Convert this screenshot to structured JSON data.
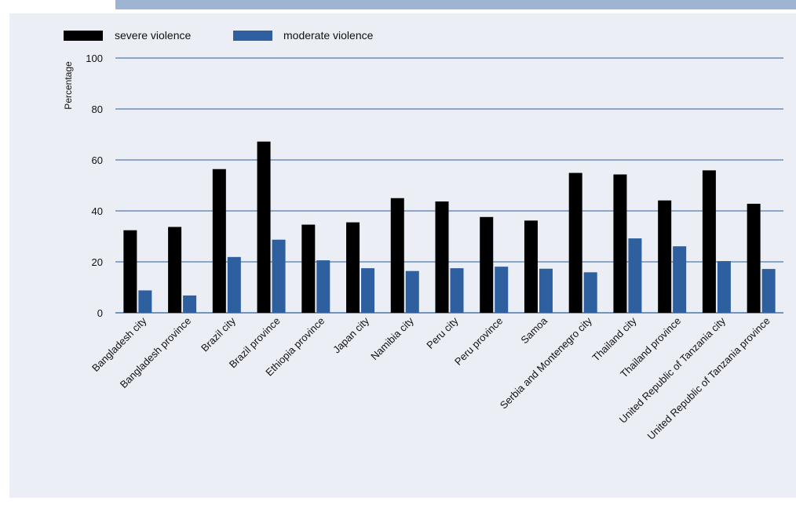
{
  "chart_data": {
    "type": "bar",
    "title": "",
    "xlabel": "",
    "ylabel": "Percentage",
    "ylim": [
      0,
      100
    ],
    "yticks": [
      0,
      20,
      40,
      60,
      80,
      100
    ],
    "grid": true,
    "legend_position": "top-left",
    "categories": [
      "Bangladesh city",
      "Bangladesh province",
      "Brazil city",
      "Brazil province",
      "Ethiopia province",
      "Japan city",
      "Namibia city",
      "Peru city",
      "Peru province",
      "Samoa",
      "Serbia and Montenegro city",
      "Thailand city",
      "Thailand province",
      "United Republic of Tanzania city",
      "United Republic of Tanzania province"
    ],
    "series": [
      {
        "name": "severe violence",
        "color": "#000000",
        "values": [
          32.4,
          33.7,
          56.4,
          67.2,
          34.6,
          35.5,
          45.0,
          43.7,
          37.6,
          36.2,
          54.9,
          54.3,
          44.1,
          55.9,
          42.8
        ]
      },
      {
        "name": "moderate violence",
        "color": "#2e5f9e",
        "values": [
          8.8,
          6.8,
          21.9,
          28.7,
          20.6,
          17.5,
          16.4,
          17.5,
          18.1,
          17.3,
          15.9,
          29.2,
          26.1,
          20.3,
          17.2
        ]
      }
    ]
  }
}
